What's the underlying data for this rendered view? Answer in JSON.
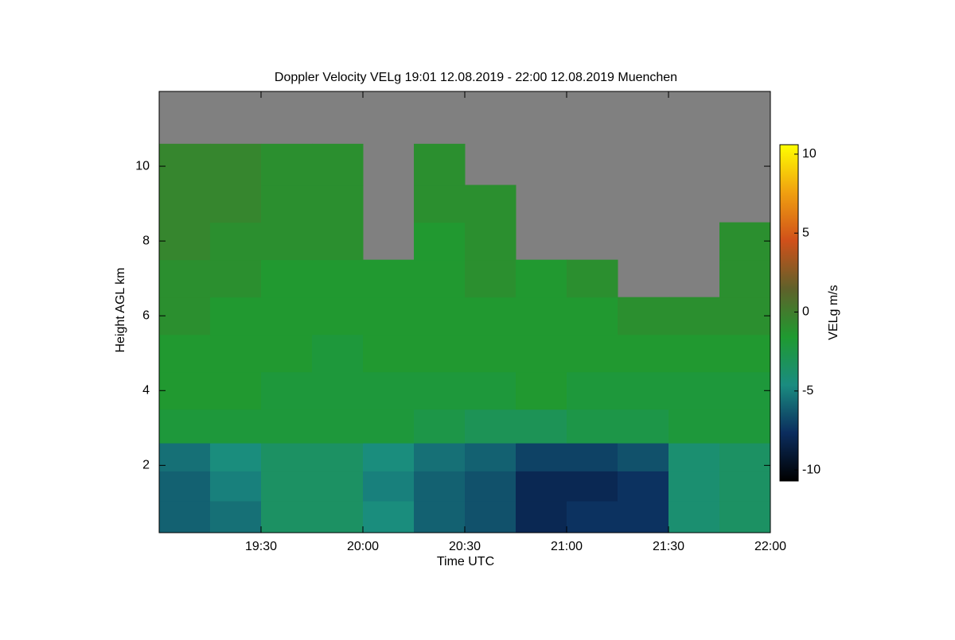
{
  "chart_data": {
    "type": "heatmap",
    "title": "Doppler Velocity VELg   19:01 12.08.2019 - 22:00 12.08.2019 Muenchen",
    "x_label": "Time UTC",
    "y_label": "Height AGL km",
    "colorbar_label": "VELg m/s",
    "x": [
      19.125,
      19.375,
      19.625,
      19.875,
      20.125,
      20.375,
      20.625,
      20.875,
      21.125,
      21.375,
      21.625,
      21.875
    ],
    "y": [
      0.6,
      1.5,
      2.2,
      3,
      4,
      5,
      6,
      7,
      8,
      9,
      10,
      11.2
    ],
    "z": [
      [
        -6,
        -5.5,
        -3.5,
        -3.5,
        -4.5,
        -6,
        -6.5,
        -8,
        -7.5,
        -7.5,
        -4,
        -3.5
      ],
      [
        -6,
        -5,
        -3.5,
        -3.5,
        -5,
        -6,
        -6.5,
        -8,
        -8,
        -7.5,
        -4,
        -3.5
      ],
      [
        -5.5,
        -4.5,
        -3.5,
        -3.5,
        -4.5,
        -5.5,
        -6,
        -7,
        -7,
        -6.5,
        -4,
        -3.5
      ],
      [
        -2,
        -2,
        -2,
        -2,
        -2,
        -2.5,
        -3,
        -3,
        -2.5,
        -2.5,
        -2,
        -2
      ],
      [
        -1.5,
        -1.5,
        -2,
        -2,
        -2,
        -2,
        -2,
        -1.5,
        -2,
        -2,
        -2,
        -2
      ],
      [
        -1.5,
        -1.5,
        -1.5,
        -2,
        -1.5,
        -1.5,
        -1.5,
        -1.5,
        -1.5,
        -1.5,
        -1.5,
        -1.5
      ],
      [
        -1,
        -1.5,
        -1.5,
        -1.5,
        -1.5,
        -1.5,
        -1.5,
        -1.5,
        -1.5,
        -1,
        -1,
        -1
      ],
      [
        -1,
        -1,
        -1.5,
        -1.5,
        -1.5,
        -1.5,
        -1,
        -1.5,
        -1,
        null,
        null,
        -1
      ],
      [
        -0.5,
        -1,
        -1,
        -1,
        null,
        -1.5,
        -1,
        null,
        null,
        null,
        null,
        -1
      ],
      [
        -0.5,
        -0.5,
        -1,
        -1,
        null,
        -1,
        -1,
        null,
        null,
        null,
        null,
        null
      ],
      [
        -0.5,
        -0.5,
        -1,
        -1,
        null,
        -1,
        null,
        null,
        null,
        null,
        null,
        null
      ],
      [
        null,
        null,
        null,
        null,
        null,
        null,
        null,
        null,
        null,
        null,
        null,
        null
      ]
    ],
    "xlim": [
      19.0,
      22.0
    ],
    "xticks": [
      {
        "value": 19.5,
        "label": "19:30"
      },
      {
        "value": 20.0,
        "label": "20:00"
      },
      {
        "value": 20.5,
        "label": "20:30"
      },
      {
        "value": 21.0,
        "label": "21:00"
      },
      {
        "value": 21.5,
        "label": "21:30"
      },
      {
        "value": 22.0,
        "label": "22:00"
      }
    ],
    "ylim": [
      0.2,
      12.0
    ],
    "yticks": [
      2,
      4,
      6,
      8,
      10
    ],
    "colorlim": [
      -10.7,
      10.6
    ],
    "colorticks": [
      -10,
      -5,
      0,
      5,
      10
    ],
    "colormap": [
      "#000000",
      "#0b2d5e",
      "#1a8c80",
      "#1f9a30",
      "#5f612a",
      "#d0501a",
      "#f0a010",
      "#ffff00"
    ],
    "missing_color": "#808080"
  }
}
